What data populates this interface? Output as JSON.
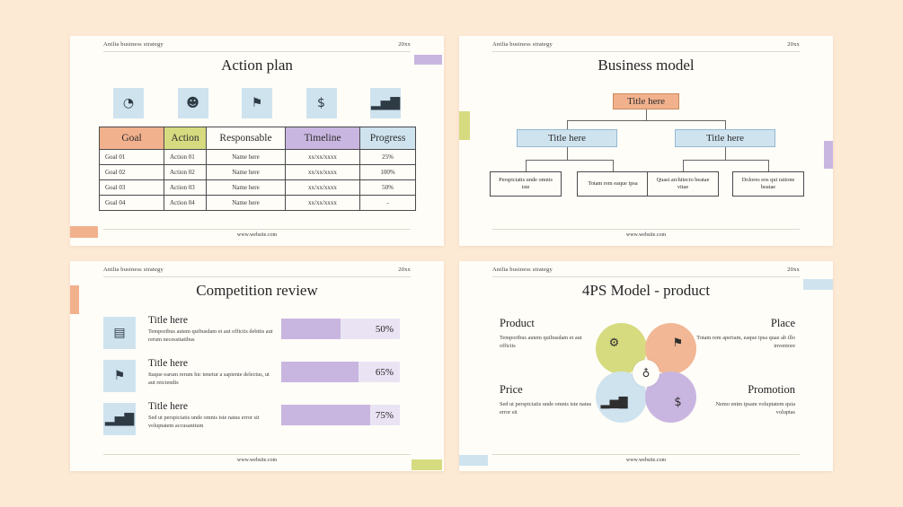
{
  "page": {
    "background": "#fdead5"
  },
  "colors": {
    "orange": "#f2b18d",
    "peach": "#f2b795",
    "green": "#d6db80",
    "purple": "#c9b6e0",
    "lavender": "#eae3f4",
    "blue": "#cfe3ef",
    "slide_bg": "#fffdf8",
    "text": "#2b2b2b"
  },
  "slides": {
    "action_plan": {
      "brand": "Antlia business strategy",
      "year": "20xx",
      "title": "Action plan",
      "icons": [
        {
          "name": "pie-chart-icon",
          "glyph": "◔"
        },
        {
          "name": "head-idea-icon",
          "glyph": "☻"
        },
        {
          "name": "flag-dollar-icon",
          "glyph": "⚑"
        },
        {
          "name": "coin-icon",
          "glyph": "$"
        },
        {
          "name": "chart-flag-icon",
          "glyph": "▂▅▇"
        }
      ],
      "table": {
        "headers": [
          "Goal",
          "Action",
          "Responsable",
          "Timeline",
          "Progress"
        ],
        "rows": [
          [
            "Goal 01",
            "Action 01",
            "Name here",
            "xx/xx/xxxx",
            "25%"
          ],
          [
            "Goal 02",
            "Action 02",
            "Name here",
            "xx/xx/xxxx",
            "100%"
          ],
          [
            "Goal 03",
            "Action 03",
            "Name here",
            "xx/xx/xxxx",
            "50%"
          ],
          [
            "Goal 04",
            "Action 04",
            "Name here",
            "xx/xx/xxxx",
            "-"
          ]
        ]
      },
      "website": "www.website.com"
    },
    "business_model": {
      "brand": "Antlia business strategy",
      "year": "20xx",
      "title": "Business model",
      "root": "Title here",
      "branches": [
        "Title here",
        "Title here"
      ],
      "leaves": [
        "Perspiciatis unde omnis iste",
        "Totam rem eaque ipsa",
        "Quasi architecto beatae vitae",
        "Dolores eos qui ratione beatae"
      ],
      "website": "www.website.com"
    },
    "competition_review": {
      "brand": "Antlia business strategy",
      "year": "20xx",
      "title": "Competition review",
      "items": [
        {
          "icon": {
            "name": "organizer-icon",
            "glyph": "▤"
          },
          "title": "Title here",
          "text": "Temporibus autem quibusdam et aut officiis debitis aut rerum necessitatibus",
          "percent": 50,
          "percent_label": "50%"
        },
        {
          "icon": {
            "name": "flag-icon",
            "glyph": "⚑"
          },
          "title": "Title here",
          "text": "Itaque earum rerum hic tenetur a sapiente delectus, ut aut reiciendis",
          "percent": 65,
          "percent_label": "65%"
        },
        {
          "icon": {
            "name": "bar-chart-icon",
            "glyph": "▂▅▇"
          },
          "title": "Title here",
          "text": "Sed ut perspiciatis unde omnis iste natus error sit voluptatem accusantium",
          "percent": 75,
          "percent_label": "75%"
        }
      ],
      "website": "www.website.com"
    },
    "fourps_model": {
      "brand": "Antlia business strategy",
      "year": "20xx",
      "title": "4PS Model - product",
      "quadrants": [
        {
          "label": "Product",
          "text": "Temporibus autem quibusdam et aut officiis"
        },
        {
          "label": "Place",
          "text": "Totam rem aperiam, eaque ipsa quae ab illo inventore"
        },
        {
          "label": "Price",
          "text": "Sed ut perspiciatis unde omnis iste natus error sit"
        },
        {
          "label": "Promotion",
          "text": "Nemo enim ipsam voluptatem quia voluptas"
        }
      ],
      "petal_icons": [
        {
          "name": "gear-icon",
          "glyph": "⚙"
        },
        {
          "name": "flag-icon",
          "glyph": "⚑"
        },
        {
          "name": "bar-chart-icon",
          "glyph": "▂▅▇"
        },
        {
          "name": "dollar-icon",
          "glyph": "$"
        }
      ],
      "center_icon": {
        "name": "person-icon",
        "glyph": "♁"
      },
      "website": "www.website.com"
    }
  }
}
